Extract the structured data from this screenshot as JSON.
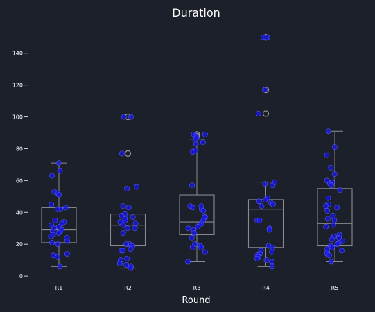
{
  "chart_data": {
    "type": "box",
    "title": "Duration",
    "xlabel": "Round",
    "ylabel": "",
    "ylim": [
      -3,
      156
    ],
    "yticks": [
      0,
      20,
      40,
      60,
      80,
      100,
      120,
      140
    ],
    "categories": [
      "R1",
      "R2",
      "R3",
      "R4",
      "R5"
    ],
    "boxes": [
      {
        "category": "R1",
        "q1": 21,
        "median": 29,
        "q3": 43,
        "whisker_low": 6,
        "whisker_high": 71,
        "outliers": []
      },
      {
        "category": "R2",
        "q1": 19,
        "median": 32,
        "q3": 39,
        "whisker_low": 5,
        "whisker_high": 56,
        "outliers": [
          77,
          100
        ]
      },
      {
        "category": "R3",
        "q1": 26,
        "median": 34,
        "q3": 51,
        "whisker_low": 9,
        "whisker_high": 86,
        "outliers": [
          88,
          89
        ]
      },
      {
        "category": "R4",
        "q1": 18,
        "median": 42,
        "q3": 48,
        "whisker_low": 6,
        "whisker_high": 59,
        "outliers": [
          102,
          117,
          150
        ]
      },
      {
        "category": "R5",
        "q1": 19,
        "median": 33,
        "q3": 55,
        "whisker_low": 9,
        "whisker_high": 91,
        "outliers": []
      }
    ],
    "points": [
      {
        "category": "R1",
        "values": [
          71,
          66,
          63,
          53,
          52,
          51,
          45,
          43,
          42,
          42,
          35,
          34,
          33,
          32,
          31,
          30,
          29,
          28,
          28,
          27,
          26,
          25,
          24,
          22,
          21,
          20,
          14,
          13,
          12,
          6
        ]
      },
      {
        "category": "R2",
        "values": [
          100,
          100,
          77,
          56,
          55,
          44,
          43,
          39,
          38,
          37,
          36,
          35,
          34,
          33,
          32,
          30,
          30,
          27,
          20,
          20,
          19,
          17,
          16,
          16,
          11,
          10,
          8,
          7,
          6,
          5
        ]
      },
      {
        "category": "R3",
        "values": [
          89,
          89,
          88,
          87,
          86,
          84,
          83,
          79,
          78,
          57,
          44,
          44,
          43,
          42,
          41,
          37,
          37,
          35,
          33,
          32,
          31,
          30,
          29,
          27,
          24,
          20,
          19,
          18,
          18,
          15,
          9
        ]
      },
      {
        "category": "R4",
        "values": [
          150,
          150,
          117,
          102,
          59,
          58,
          57,
          49,
          48,
          47,
          46,
          45,
          44,
          35,
          35,
          30,
          29,
          19,
          18,
          16,
          15,
          14,
          13,
          12,
          11,
          10,
          9,
          6
        ]
      },
      {
        "category": "R5",
        "values": [
          91,
          81,
          76,
          68,
          64,
          60,
          59,
          58,
          57,
          54,
          49,
          45,
          44,
          43,
          41,
          38,
          36,
          35,
          32,
          31,
          26,
          25,
          24,
          23,
          22,
          21,
          20,
          19,
          18,
          17,
          16,
          15,
          14,
          13,
          9
        ]
      }
    ]
  }
}
